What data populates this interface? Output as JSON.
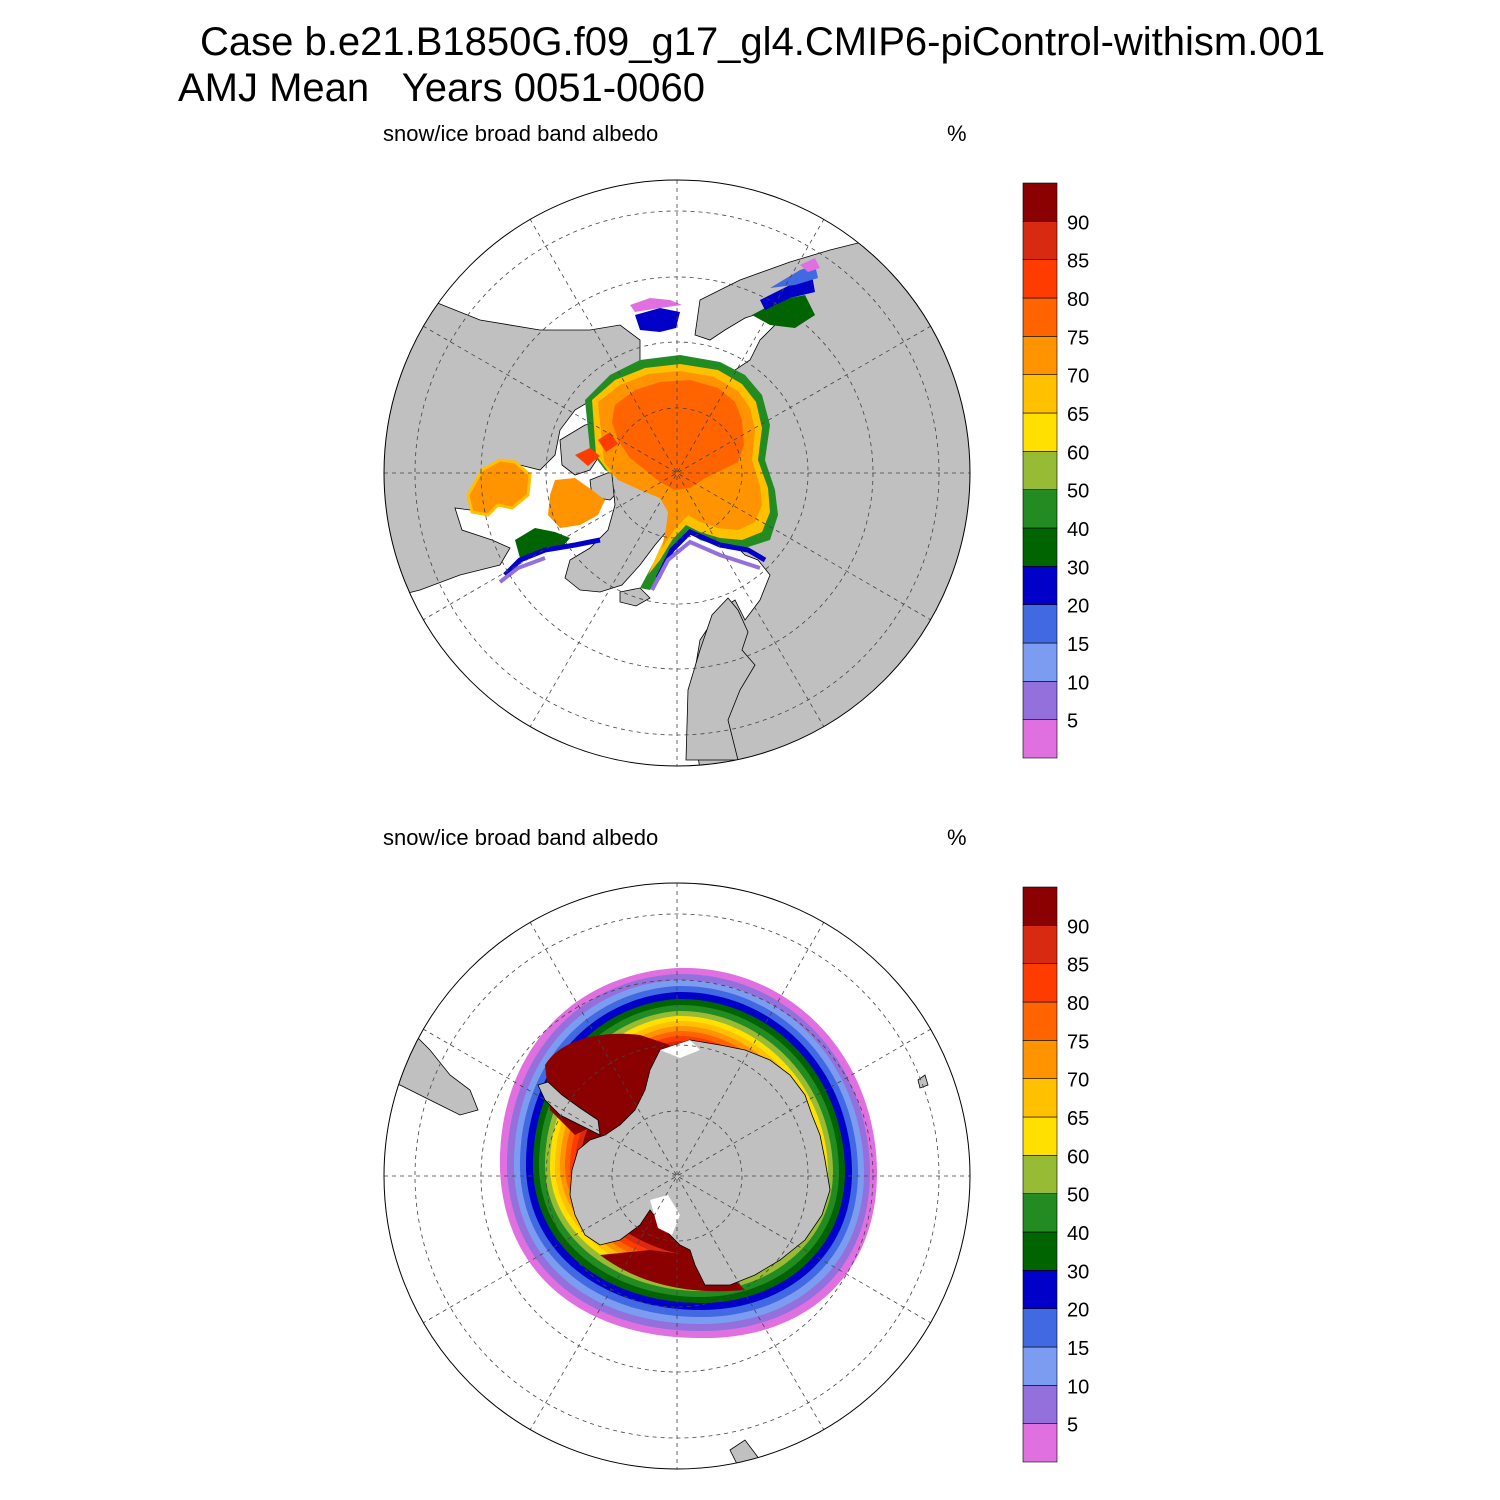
{
  "figure": {
    "title_line1": "Case b.e21.B1850G.f09_g17_gl4.CMIP6-piControl-withism.001",
    "title_line2": "AMJ Mean   Years 0051-0060"
  },
  "panels": [
    {
      "hemisphere": "north",
      "label": "snow/ice broad band albedo",
      "units": "%"
    },
    {
      "hemisphere": "south",
      "label": "snow/ice broad band albedo",
      "units": "%"
    }
  ],
  "colorbar": {
    "levels": [
      "5",
      "10",
      "15",
      "20",
      "30",
      "40",
      "50",
      "60",
      "65",
      "70",
      "75",
      "80",
      "85",
      "90"
    ],
    "colors": [
      "#e070e0",
      "#9370db",
      "#7b9cf0",
      "#4169e1",
      "#0000c8",
      "#006400",
      "#228b22",
      "#98bb35",
      "#ffe000",
      "#ffc000",
      "#ff9400",
      "#ff6400",
      "#ff3c00",
      "#d82a10",
      "#8b0000"
    ]
  },
  "map_colors": {
    "land": "#c0c0c0",
    "ocean": "#ffffff"
  }
}
